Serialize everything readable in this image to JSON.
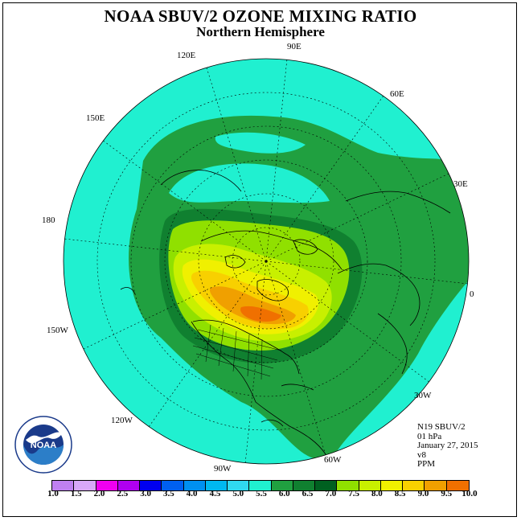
{
  "title": "NOAA SBUV/2 OZONE MIXING RATIO",
  "subtitle": "Northern Hemisphere",
  "longitude_labels": [
    "90E",
    "60E",
    "30E",
    "0",
    "30W",
    "60W",
    "90W",
    "120W",
    "150W",
    "180",
    "150E",
    "120E"
  ],
  "info": {
    "instrument": "N19 SBUV/2",
    "level": "01 hPa",
    "date": "January 27, 2015",
    "version": "v8",
    "units": "PPM"
  },
  "colorbar": {
    "colors": [
      "#c080f0",
      "#d8a8f8",
      "#f000f0",
      "#b000f0",
      "#0000f0",
      "#0060f0",
      "#0090f0",
      "#00b8f0",
      "#30d8f0",
      "#20f0d0",
      "#20a040",
      "#108030",
      "#006020",
      "#90e000",
      "#c8f000",
      "#f0f000",
      "#f8d000",
      "#f0a000",
      "#f07000",
      "#f00000",
      "#c00000",
      "#905030"
    ],
    "labels": [
      "1.0",
      "1.5",
      "2.0",
      "2.5",
      "3.0",
      "3.5",
      "4.0",
      "4.5",
      "5.0",
      "5.5",
      "6.0",
      "6.5",
      "7.0",
      "7.5",
      "8.0",
      "8.5",
      "9.0",
      "9.5",
      "10.0"
    ]
  },
  "field_colors": {
    "ocean": "#20f0d0",
    "band_5_5": "#20a040",
    "band_6_0": "#108030",
    "band_6_5": "#90e000",
    "band_7_0": "#c8f000",
    "band_7_5": "#f0f000",
    "band_8_0": "#f8d000",
    "band_8_5": "#f0a000",
    "band_9_0": "#f07000"
  },
  "logo_text": "NOAA"
}
